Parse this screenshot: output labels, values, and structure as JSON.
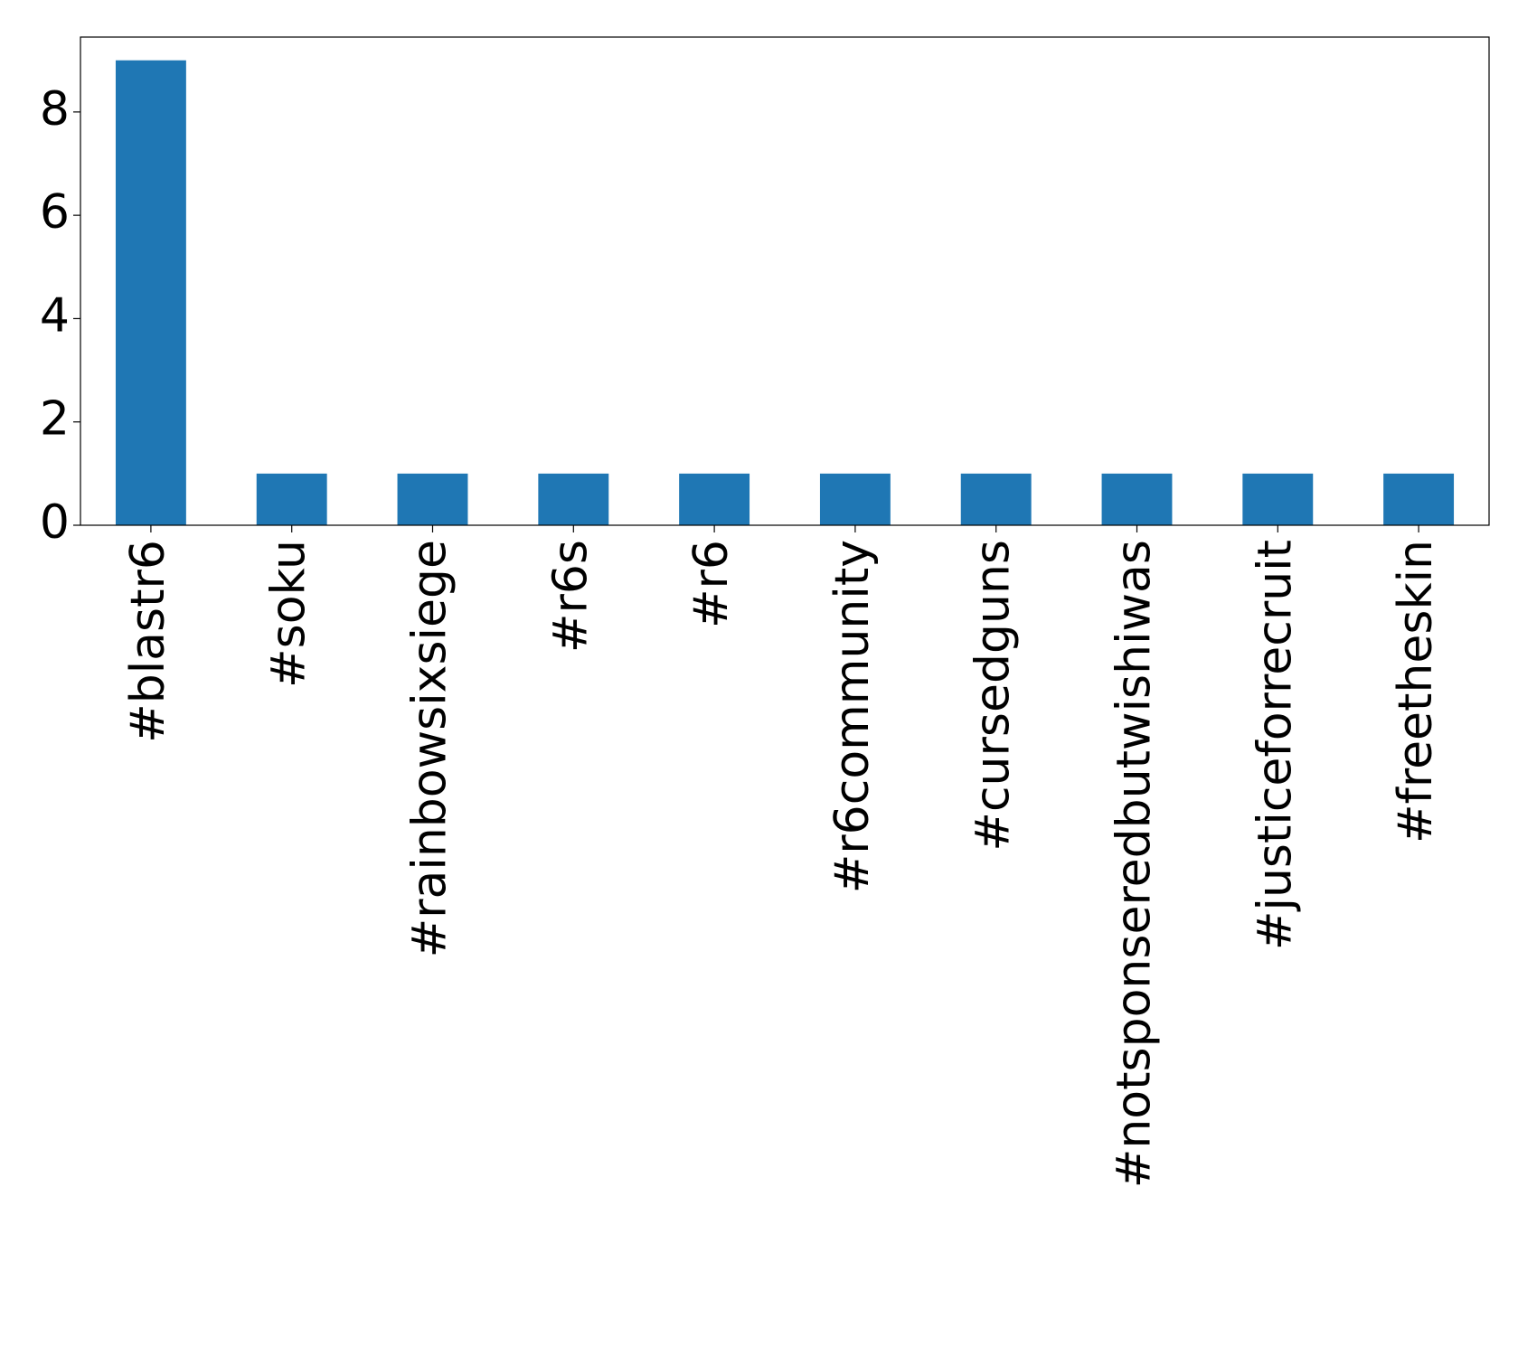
{
  "chart_data": {
    "type": "bar",
    "categories": [
      "#blastr6",
      "#soku",
      "#rainbowsixsiege",
      "#r6s",
      "#r6",
      "#r6community",
      "#cursedguns",
      "#notsponseredbutwishiwas",
      "#justiceforrecruit",
      "#freetheskin"
    ],
    "values": [
      9,
      1,
      1,
      1,
      1,
      1,
      1,
      1,
      1,
      1
    ],
    "color": "#1f77b4",
    "ylim": [
      0,
      9.45
    ],
    "yticks": [
      0,
      2,
      4,
      6,
      8
    ],
    "grid": false
  }
}
